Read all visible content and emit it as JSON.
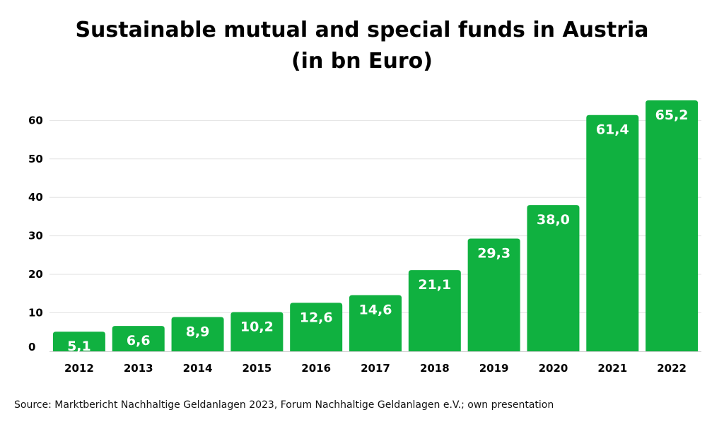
{
  "title_line_1": "Sustainable mutual and special funds in Austria",
  "title_line_2": "(in bn Euro)",
  "source": "Source: Marktbericht Nachhaltige Geldanlagen 2023, Forum Nachhaltige Geldanlagen e.V.; own presentation",
  "colors": {
    "bar": "#10b140",
    "grid": "#e3e3e3",
    "axis": "#cfcfcf"
  },
  "chart_data": {
    "type": "bar",
    "title": "Sustainable mutual and special funds in Austria (in bn Euro)",
    "categories": [
      "2012",
      "2013",
      "2014",
      "2015",
      "2016",
      "2017",
      "2018",
      "2019",
      "2020",
      "2021",
      "2022"
    ],
    "values": [
      5.1,
      6.6,
      8.9,
      10.2,
      12.6,
      14.6,
      21.1,
      29.3,
      38.0,
      61.4,
      65.2
    ],
    "value_labels": [
      "5,1",
      "6,6",
      "8,9",
      "10,2",
      "12,6",
      "14,6",
      "21,1",
      "29,3",
      "38,0",
      "61,4",
      "65,2"
    ],
    "yticks": [
      0,
      10,
      20,
      30,
      40,
      50,
      60
    ],
    "ylim": [
      0,
      65.2
    ],
    "grid": true,
    "legend": "none"
  }
}
